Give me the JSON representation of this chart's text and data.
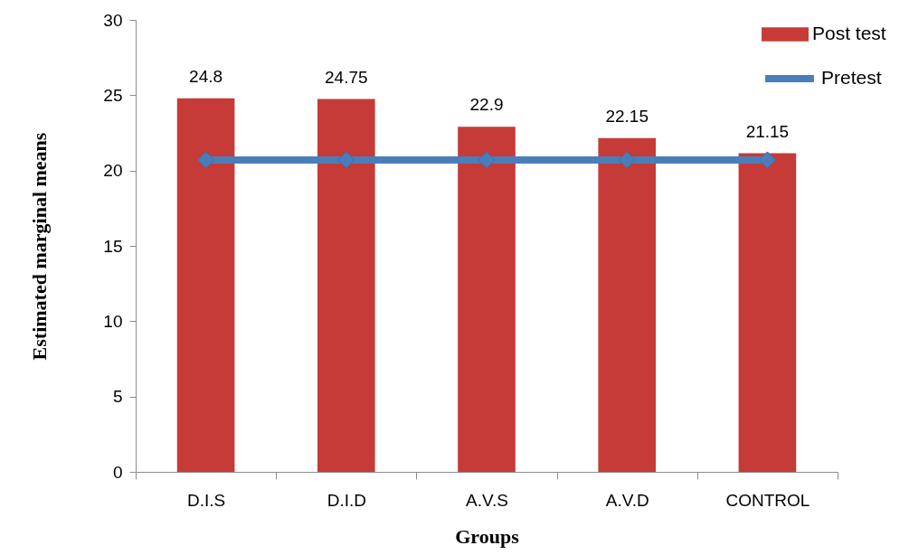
{
  "chart_data": {
    "type": "bar",
    "xlabel": "Groups",
    "ylabel": "Estimated marginal means",
    "categories": [
      "D.I.S",
      "D.I.D",
      "A.V.S",
      "A.V.D",
      "CONTROL"
    ],
    "series": [
      {
        "name": "Post test",
        "color": "#c63b37",
        "values": [
          24.8,
          24.75,
          22.9,
          22.15,
          21.15
        ],
        "value_labels": [
          "24.8",
          "24.75",
          "22.9",
          "22.15",
          "21.15"
        ]
      },
      {
        "name": "Pretest",
        "type": "line",
        "color": "#4a7ebb",
        "values": [
          20.7,
          20.7,
          20.7,
          20.7,
          20.7
        ]
      }
    ],
    "ylim": [
      0,
      30
    ],
    "yticks": [
      0,
      5,
      10,
      15,
      20,
      25,
      30
    ],
    "grid": false,
    "legend": "top right",
    "marker": "diamond"
  }
}
